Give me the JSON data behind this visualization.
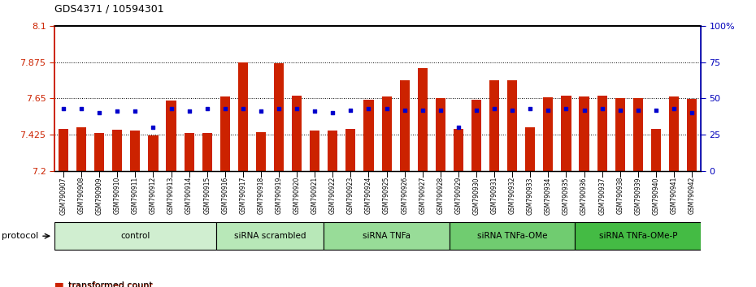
{
  "title": "GDS4371 / 10594301",
  "ylim_left": [
    7.2,
    8.1
  ],
  "ylim_right": [
    0,
    100
  ],
  "yticks_left": [
    7.2,
    7.425,
    7.65,
    7.875,
    8.1
  ],
  "ytick_labels_right": [
    "0",
    "25",
    "50",
    "75",
    "100%"
  ],
  "samples": [
    "GSM790907",
    "GSM790908",
    "GSM790909",
    "GSM790910",
    "GSM790911",
    "GSM790912",
    "GSM790913",
    "GSM790914",
    "GSM790915",
    "GSM790916",
    "GSM790917",
    "GSM790918",
    "GSM790919",
    "GSM790920",
    "GSM790921",
    "GSM790922",
    "GSM790923",
    "GSM790924",
    "GSM790925",
    "GSM790926",
    "GSM790927",
    "GSM790928",
    "GSM790929",
    "GSM790930",
    "GSM790931",
    "GSM790932",
    "GSM790933",
    "GSM790934",
    "GSM790935",
    "GSM790936",
    "GSM790937",
    "GSM790938",
    "GSM790939",
    "GSM790940",
    "GSM790941",
    "GSM790942"
  ],
  "red_values": [
    7.462,
    7.468,
    7.437,
    7.455,
    7.452,
    7.418,
    7.635,
    7.435,
    7.435,
    7.66,
    7.875,
    7.438,
    7.87,
    7.665,
    7.45,
    7.45,
    7.462,
    7.64,
    7.66,
    7.76,
    7.84,
    7.65,
    7.46,
    7.64,
    7.76,
    7.76,
    7.468,
    7.658,
    7.665,
    7.66,
    7.665,
    7.65,
    7.65,
    7.462,
    7.66,
    7.648
  ],
  "blue_values": [
    43,
    43,
    40,
    41,
    41,
    30,
    43,
    41,
    43,
    43,
    43,
    41,
    43,
    43,
    41,
    40,
    42,
    43,
    43,
    42,
    42,
    42,
    30,
    42,
    43,
    42,
    43,
    42,
    43,
    42,
    43,
    42,
    42,
    42,
    43,
    40
  ],
  "groups": [
    {
      "label": "control",
      "start": 0,
      "end": 8,
      "color": "#d0eed0"
    },
    {
      "label": "siRNA scrambled",
      "start": 9,
      "end": 14,
      "color": "#b8e8b8"
    },
    {
      "label": "siRNA TNFa",
      "start": 15,
      "end": 21,
      "color": "#98dc98"
    },
    {
      "label": "siRNA TNFa-OMe",
      "start": 22,
      "end": 28,
      "color": "#70cc70"
    },
    {
      "label": "siRNA TNFa-OMe-P",
      "start": 29,
      "end": 35,
      "color": "#44bb44"
    }
  ],
  "bar_color": "#cc2200",
  "dot_color": "#0000cc",
  "bar_width": 0.55,
  "yticks_right": [
    0,
    25,
    50,
    75,
    100
  ]
}
